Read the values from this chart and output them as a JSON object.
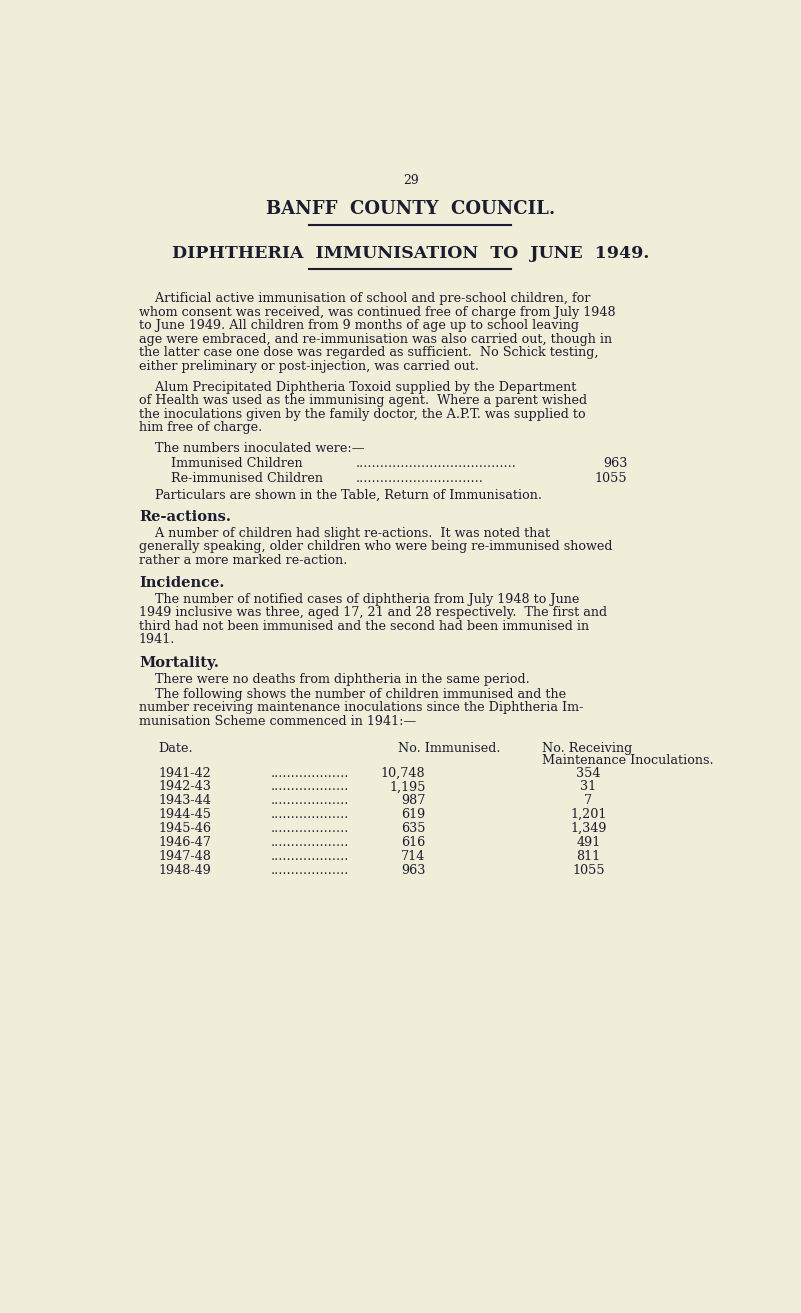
{
  "bg_color": "#f0edd8",
  "text_color": "#1c1c30",
  "page_number": "29",
  "title1": "BANFF  COUNTY  COUNCIL.",
  "title2": "DIPHTHERIA  IMMUNISATION  TO  JUNE  1949.",
  "para1_lines": [
    "    Artificial active immunisation of school and pre-school children, for",
    "whom consent was received, was continued free of charge from July 1948",
    "to June 1949. All children from 9 months of age up to school leaving",
    "age were embraced, and re-immunisation was also carried out, though in",
    "the latter case one dose was regarded as sufficient.  No Schick testing,",
    "either preliminary or post-injection, was carried out."
  ],
  "para2_lines": [
    "    Alum Precipitated Diphtheria Toxoid supplied by the Department",
    "of Health was used as the immunising agent.  Where a parent wished",
    "the inoculations given by the family doctor, the A.P.T. was supplied to",
    "him free of charge."
  ],
  "numbers_intro": "    The numbers inoculated were:—",
  "immunised_label": "        Immunised Children",
  "immunised_dots": ".......................................",
  "immunised_value": "963",
  "reimm_label": "        Re-immunised Children",
  "reimm_dots": "...............................",
  "reimm_value": "1055",
  "particulars": "    Particulars are shown in the Table, Return of Immunisation.",
  "reactions_heading": "Re-actions.",
  "reactions_lines": [
    "    A number of children had slight re-actions.  It was noted that",
    "generally speaking, older children who were being re-immunised showed",
    "rather a more marked re-action."
  ],
  "incidence_heading": "Incidence.",
  "incidence_lines": [
    "    The number of notified cases of diphtheria from July 1948 to June",
    "1949 inclusive was three, aged 17, 21 and 28 respectively.  The first and",
    "third had not been immunised and the second had been immunised in",
    "1941."
  ],
  "mortality_heading": "Mortality.",
  "mortality_para1": "    There were no deaths from diphtheria in the same period.",
  "mortality_para2_lines": [
    "    The following shows the number of children immunised and the",
    "number receiving maintenance inoculations since the Diphtheria Im-",
    "munisation Scheme commenced in 1941:—"
  ],
  "table_col1_header": "Date.",
  "table_col2_header": "No. Immunised.",
  "table_col3_header1": "No. Receiving",
  "table_col3_header2": "Maintenance Inoculations.",
  "table_rows": [
    [
      "1941-42",
      "...................",
      "10,748",
      "354"
    ],
    [
      "1942-43",
      "...................",
      "1,195",
      "31"
    ],
    [
      "1943-44",
      "...................",
      "987",
      "7"
    ],
    [
      "1944-45",
      "...................",
      "619",
      "1,201"
    ],
    [
      "1945-46",
      "...................",
      "635",
      "1,349"
    ],
    [
      "1946-47",
      "...................",
      "616",
      "491"
    ],
    [
      "1947-48",
      "...................",
      "714",
      "811"
    ],
    [
      "1948-49",
      "...................",
      "963",
      "1055"
    ]
  ]
}
